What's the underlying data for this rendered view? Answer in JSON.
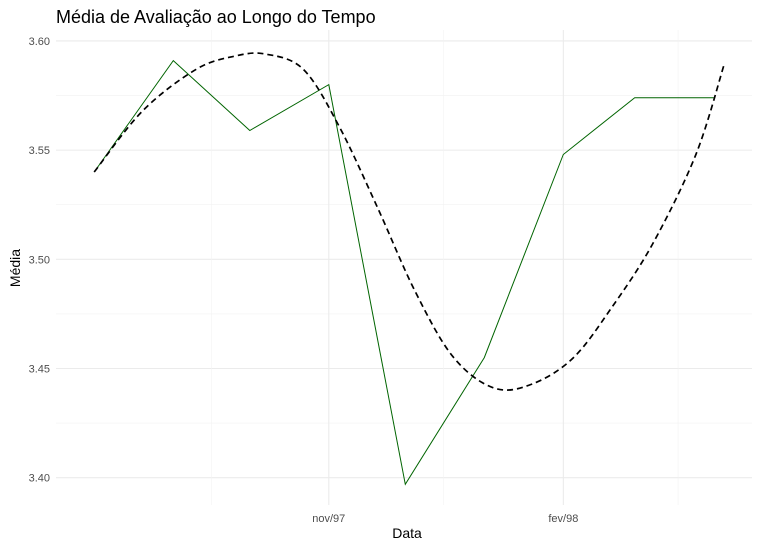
{
  "chart_data": {
    "type": "line",
    "title": "Média de Avaliação ao Longo do Tempo",
    "xlabel": "Data",
    "ylabel": "Média",
    "x": [
      "1997-08-01",
      "1997-09-01",
      "1997-10-01",
      "1997-11-01",
      "1997-12-01",
      "1998-01-01",
      "1998-02-01",
      "1998-03-01",
      "1998-04-01"
    ],
    "x_ticks": [
      {
        "date": "1997-11-01",
        "label": "nov/97"
      },
      {
        "date": "1998-02-01",
        "label": "fev/98"
      }
    ],
    "xlim": [
      "1997-07-17",
      "1998-04-16"
    ],
    "ylim": [
      3.3875,
      3.605
    ],
    "y_ticks": [
      3.4,
      3.45,
      3.5,
      3.55,
      3.6
    ],
    "y_tick_labels": [
      "3.40",
      "3.45",
      "3.50",
      "3.55",
      "3.60"
    ],
    "series": [
      {
        "style": "solid",
        "color": "#006400",
        "values": [
          3.54,
          3.591,
          3.559,
          3.58,
          3.397,
          3.455,
          3.548,
          3.574,
          3.574
        ],
        "dates": [
          "1997-08-01",
          "1997-09-01",
          "1997-10-01",
          "1997-11-01",
          "1997-12-01",
          "1998-01-01",
          "1998-02-01",
          "1998-03-01",
          "1998-04-01"
        ]
      },
      {
        "style": "dashed",
        "color": "#000000",
        "kind": "smoothed trend",
        "points": [
          [
            "1997-08-01",
            3.54
          ],
          [
            "1997-08-20",
            3.568
          ],
          [
            "1997-09-10",
            3.587
          ],
          [
            "1997-09-25",
            3.593
          ],
          [
            "1997-10-07",
            3.594
          ],
          [
            "1997-10-22",
            3.587
          ],
          [
            "1997-11-05",
            3.561
          ],
          [
            "1997-11-20",
            3.524
          ],
          [
            "1997-12-05",
            3.485
          ],
          [
            "1997-12-20",
            3.455
          ],
          [
            "1998-01-05",
            3.441
          ],
          [
            "1998-01-20",
            3.443
          ],
          [
            "1998-02-05",
            3.455
          ],
          [
            "1998-02-20",
            3.478
          ],
          [
            "1998-03-08",
            3.507
          ],
          [
            "1998-03-25",
            3.548
          ],
          [
            "1998-04-05",
            3.589
          ]
        ]
      }
    ],
    "grid": true,
    "legend": "none"
  }
}
